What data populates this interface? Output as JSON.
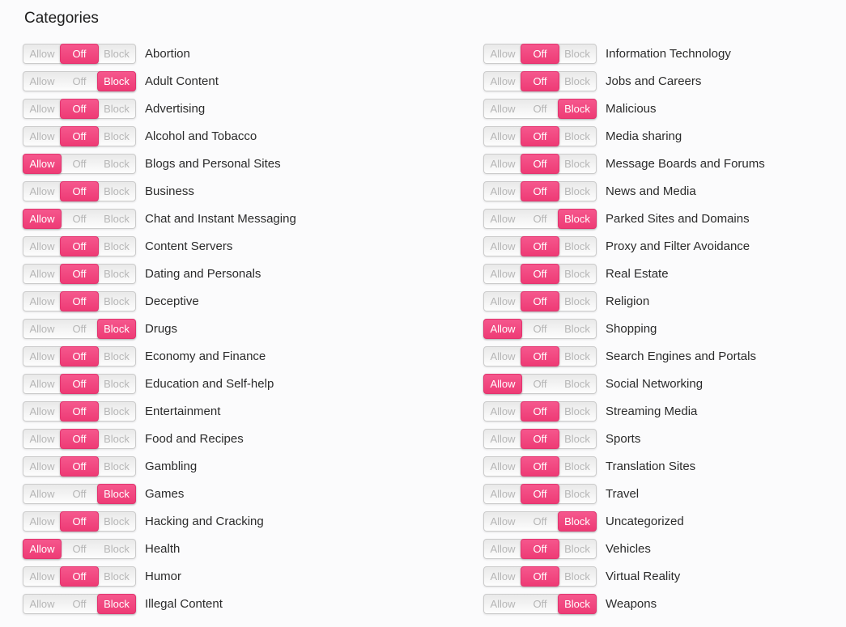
{
  "page": {
    "title": "Categories"
  },
  "toggle": {
    "options": [
      "Allow",
      "Off",
      "Block"
    ]
  },
  "colors": {
    "accent": "#ee3b75",
    "accent_top": "#f5578d",
    "accent_border": "#e2346f",
    "control_border": "#cbcbcb",
    "inactive_text": "#b6b6b6",
    "label_text": "#2b2b2b",
    "page_background": "#fbfbfc"
  },
  "columns": [
    {
      "items": [
        {
          "label": "Abortion",
          "state": "off"
        },
        {
          "label": "Adult Content",
          "state": "block"
        },
        {
          "label": "Advertising",
          "state": "off"
        },
        {
          "label": "Alcohol and Tobacco",
          "state": "off"
        },
        {
          "label": "Blogs and Personal Sites",
          "state": "allow"
        },
        {
          "label": "Business",
          "state": "off"
        },
        {
          "label": "Chat and Instant Messaging",
          "state": "allow"
        },
        {
          "label": "Content Servers",
          "state": "off"
        },
        {
          "label": "Dating and Personals",
          "state": "off"
        },
        {
          "label": "Deceptive",
          "state": "off"
        },
        {
          "label": "Drugs",
          "state": "block"
        },
        {
          "label": "Economy and Finance",
          "state": "off"
        },
        {
          "label": "Education and Self-help",
          "state": "off"
        },
        {
          "label": "Entertainment",
          "state": "off"
        },
        {
          "label": "Food and Recipes",
          "state": "off"
        },
        {
          "label": "Gambling",
          "state": "off"
        },
        {
          "label": "Games",
          "state": "block"
        },
        {
          "label": "Hacking and Cracking",
          "state": "off"
        },
        {
          "label": "Health",
          "state": "allow"
        },
        {
          "label": "Humor",
          "state": "off"
        },
        {
          "label": "Illegal Content",
          "state": "block"
        }
      ]
    },
    {
      "items": [
        {
          "label": "Information Technology",
          "state": "off"
        },
        {
          "label": "Jobs and Careers",
          "state": "off"
        },
        {
          "label": "Malicious",
          "state": "block"
        },
        {
          "label": "Media sharing",
          "state": "off"
        },
        {
          "label": "Message Boards and Forums",
          "state": "off"
        },
        {
          "label": "News and Media",
          "state": "off"
        },
        {
          "label": "Parked Sites and Domains",
          "state": "block"
        },
        {
          "label": "Proxy and Filter Avoidance",
          "state": "off"
        },
        {
          "label": "Real Estate",
          "state": "off"
        },
        {
          "label": "Religion",
          "state": "off"
        },
        {
          "label": "Shopping",
          "state": "allow"
        },
        {
          "label": "Search Engines and Portals",
          "state": "off"
        },
        {
          "label": "Social Networking",
          "state": "allow"
        },
        {
          "label": "Streaming Media",
          "state": "off"
        },
        {
          "label": "Sports",
          "state": "off"
        },
        {
          "label": "Translation Sites",
          "state": "off"
        },
        {
          "label": "Travel",
          "state": "off"
        },
        {
          "label": "Uncategorized",
          "state": "block"
        },
        {
          "label": "Vehicles",
          "state": "off"
        },
        {
          "label": "Virtual Reality",
          "state": "off"
        },
        {
          "label": "Weapons",
          "state": "block"
        }
      ]
    }
  ]
}
